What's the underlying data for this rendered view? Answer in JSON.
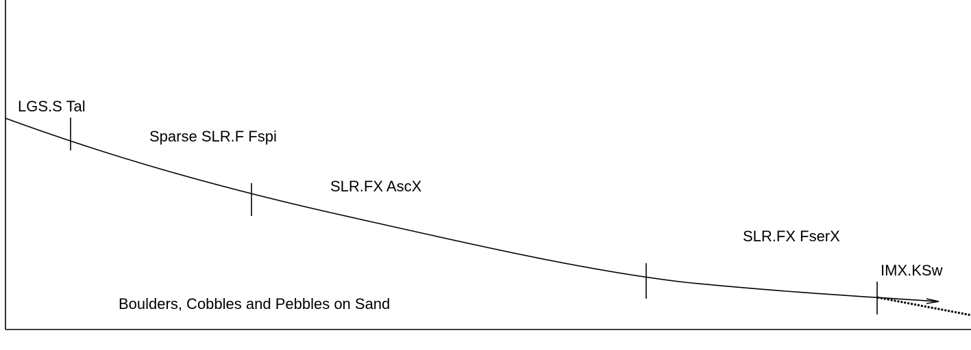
{
  "labels": [
    "LGS.S Tal",
    "Sparse SLR.F Fspi",
    "SLR.FX AscX",
    "SLR.FX FserX",
    "IMX.KSw",
    "Boulders, Cobbles and Pebbles on Sand"
  ]
}
